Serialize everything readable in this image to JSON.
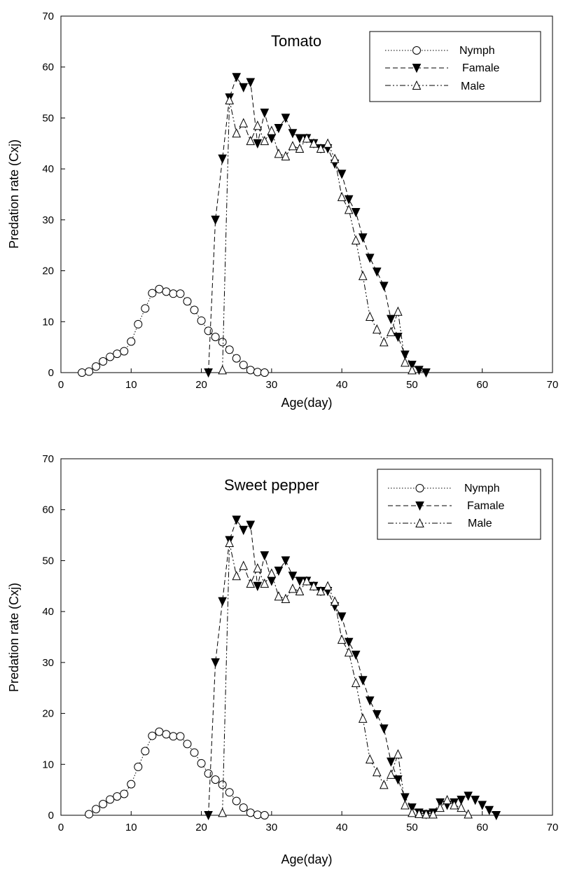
{
  "chart_data": [
    {
      "type": "line",
      "title": "Tomato",
      "xlabel": "Age(day)",
      "ylabel": "Predation rate (Cxj)",
      "xlim": [
        0,
        70
      ],
      "ylim": [
        0,
        70
      ],
      "xticks": [
        0,
        10,
        20,
        30,
        40,
        50,
        60,
        70
      ],
      "yticks": [
        0,
        10,
        20,
        30,
        40,
        50,
        60,
        70
      ],
      "grid": false,
      "legend_position": "top-right",
      "series": [
        {
          "name": "Nymph",
          "line_style": "dotted",
          "marker": "open-circle",
          "x": [
            3,
            4,
            5,
            6,
            7,
            8,
            9,
            10,
            11,
            12,
            13,
            14,
            15,
            16,
            17,
            18,
            19,
            20,
            21,
            22,
            23,
            24,
            25,
            26,
            27,
            28,
            29
          ],
          "y": [
            0,
            0.2,
            1.2,
            2.2,
            3.1,
            3.7,
            4.2,
            6.1,
            9.5,
            12.6,
            15.6,
            16.4,
            15.9,
            15.5,
            15.5,
            14.0,
            12.3,
            10.2,
            8.2,
            7.0,
            6.0,
            4.5,
            2.8,
            1.5,
            0.5,
            0.1,
            0
          ]
        },
        {
          "name": "Famale",
          "line_style": "dashed",
          "marker": "filled-triangle-down",
          "x": [
            21,
            22,
            23,
            24,
            25,
            26,
            27,
            28,
            29,
            30,
            31,
            32,
            33,
            34,
            35,
            36,
            37,
            38,
            39,
            40,
            41,
            42,
            43,
            44,
            45,
            46,
            47,
            48,
            49,
            50,
            51,
            52
          ],
          "y": [
            0,
            30,
            42,
            54,
            58,
            56,
            57,
            45,
            51,
            46,
            48,
            50,
            47,
            46,
            46,
            45,
            44,
            44,
            41,
            39,
            34,
            31.5,
            26.5,
            22.5,
            19.8,
            17,
            10.5,
            7,
            3.5,
            1.5,
            0.5,
            0
          ]
        },
        {
          "name": "Male",
          "line_style": "dash-dot-dot",
          "marker": "open-triangle-up",
          "x": [
            23,
            24,
            25,
            26,
            27,
            28,
            29,
            30,
            31,
            32,
            33,
            34,
            35,
            36,
            37,
            38,
            39,
            40,
            41,
            42,
            43,
            44,
            45,
            46,
            47,
            48,
            49,
            50
          ],
          "y": [
            0.5,
            53.5,
            47,
            49,
            45.5,
            48.5,
            45.5,
            47.5,
            43,
            42.5,
            44.5,
            44,
            46,
            45,
            44,
            45,
            42,
            34.5,
            32,
            26,
            19,
            11,
            8.5,
            6,
            8,
            12,
            2,
            0.5
          ]
        }
      ]
    },
    {
      "type": "line",
      "title": "Sweet pepper",
      "xlabel": "Age(day)",
      "ylabel": "Predation rate (Cxj)",
      "xlim": [
        0,
        70
      ],
      "ylim": [
        0,
        70
      ],
      "xticks": [
        0,
        10,
        20,
        30,
        40,
        50,
        60,
        70
      ],
      "yticks": [
        0,
        10,
        20,
        30,
        40,
        50,
        60,
        70
      ],
      "grid": false,
      "legend_position": "top-right",
      "series": [
        {
          "name": "Nymph",
          "line_style": "dotted",
          "marker": "open-circle",
          "x": [
            4,
            5,
            6,
            7,
            8,
            9,
            10,
            11,
            12,
            13,
            14,
            15,
            16,
            17,
            18,
            19,
            20,
            21,
            22,
            23,
            24,
            25,
            26,
            27,
            28,
            29
          ],
          "y": [
            0.2,
            1.2,
            2.2,
            3.1,
            3.7,
            4.2,
            6.1,
            9.5,
            12.6,
            15.6,
            16.4,
            15.9,
            15.5,
            15.5,
            14.0,
            12.3,
            10.2,
            8.2,
            7.0,
            6.0,
            4.5,
            2.8,
            1.5,
            0.5,
            0.1,
            0
          ]
        },
        {
          "name": "Famale",
          "line_style": "dashed",
          "marker": "filled-triangle-down",
          "x": [
            21,
            22,
            23,
            24,
            25,
            26,
            27,
            28,
            29,
            30,
            31,
            32,
            33,
            34,
            35,
            36,
            37,
            38,
            39,
            40,
            41,
            42,
            43,
            44,
            45,
            46,
            47,
            48,
            49,
            50,
            51,
            52,
            53,
            54,
            55,
            56,
            57,
            58,
            59,
            60,
            61,
            62
          ],
          "y": [
            0,
            30,
            42,
            54,
            58,
            56,
            57,
            45,
            51,
            46,
            48,
            50,
            47,
            46,
            46,
            45,
            44,
            44,
            41,
            39,
            34,
            31.5,
            26.5,
            22.5,
            19.8,
            17,
            10.5,
            7,
            3.5,
            1.5,
            0.5,
            0.2,
            0.5,
            2.5,
            2,
            2.5,
            3,
            3.8,
            3,
            2,
            1,
            0
          ]
        },
        {
          "name": "Male",
          "line_style": "dash-dot-dot",
          "marker": "open-triangle-up",
          "x": [
            23,
            24,
            25,
            26,
            27,
            28,
            29,
            30,
            31,
            32,
            33,
            34,
            35,
            36,
            37,
            38,
            39,
            40,
            41,
            42,
            43,
            44,
            45,
            46,
            47,
            48,
            49,
            50,
            51,
            52,
            53,
            54,
            55,
            56,
            57,
            58
          ],
          "y": [
            0.5,
            53.5,
            47,
            49,
            45.5,
            48.5,
            45.5,
            47.5,
            43,
            42.5,
            44.5,
            44,
            46,
            45,
            44,
            45,
            42,
            34.5,
            32,
            26,
            19,
            11,
            8.5,
            6,
            8,
            12,
            2,
            0.5,
            0.3,
            0.2,
            0.2,
            1.5,
            3,
            2,
            1.5,
            0.2
          ]
        }
      ]
    }
  ]
}
